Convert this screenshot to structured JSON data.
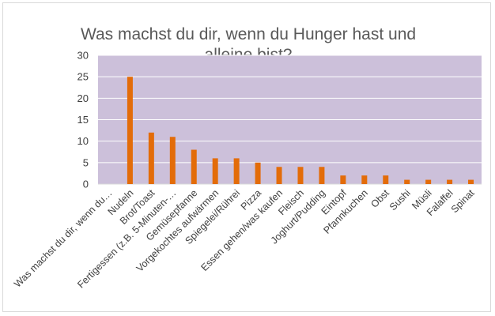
{
  "chart_data": {
    "type": "bar",
    "title_line1": "Was machst du dir, wenn du Hunger hast und",
    "title_line2": "alleine bist?",
    "categories": [
      "Was machst du dir, wenn du…",
      "Nudeln",
      "Brot/Toast",
      "Fertigessen (z.B. 5-Minuten-…",
      "Gemüsepfanne",
      "Vorgekochtes aufwärmen",
      "Spiegelei/Rührei",
      "Pizza",
      "Essen gehen/was kaufen",
      "Fleisch",
      "Joghurt/Pudding",
      "Eintopf",
      "Pfannkuchen",
      "Obst",
      "Sushi",
      "Müsli",
      "Falaffel",
      "Spinat"
    ],
    "values": [
      0,
      25,
      12,
      11,
      8,
      6,
      6,
      5,
      4,
      4,
      4,
      2,
      2,
      2,
      1,
      1,
      1,
      1
    ],
    "ylim": [
      0,
      30
    ],
    "yticks": [
      "0",
      "5",
      "10",
      "15",
      "20",
      "25",
      "30"
    ],
    "grid": true,
    "legend": "none",
    "colors": {
      "plot_background": "#ccc0da",
      "bar": "#e36c09",
      "gridline": "#ffffff",
      "title": "#595959",
      "axis_text": "#404040"
    }
  }
}
